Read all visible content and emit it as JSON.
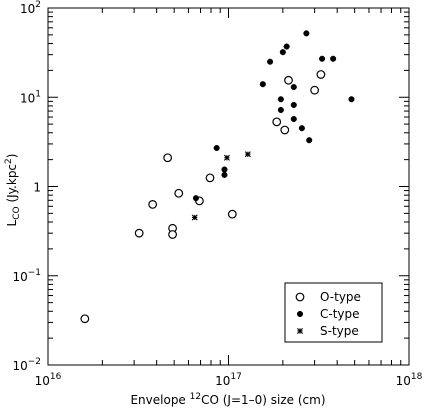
{
  "chart_data": {
    "type": "scatter",
    "title": "",
    "xlabel": {
      "prefix": "Envelope ",
      "sup": "12",
      "suffix": "CO (J=1–0) size (cm)"
    },
    "ylabel": {
      "base": "L",
      "sub": "CO",
      "mid": " (Jy.kpc",
      "sup": "2",
      "end": ")"
    },
    "x_scale": "log",
    "y_scale": "log",
    "xlim": [
      1e+16,
      1e+18
    ],
    "ylim": [
      0.01,
      100
    ],
    "x_ticks": [
      {
        "value": 1e+16,
        "base": "10",
        "exp": "16"
      },
      {
        "value": 1e+17,
        "base": "10",
        "exp": "17"
      },
      {
        "value": 1e+18,
        "base": "10",
        "exp": "18"
      }
    ],
    "y_ticks": [
      {
        "value": 0.01,
        "base": "10",
        "exp": "−2"
      },
      {
        "value": 0.1,
        "base": "10",
        "exp": "−1"
      },
      {
        "value": 1,
        "base": "1",
        "exp": ""
      },
      {
        "value": 10,
        "base": "10",
        "exp": "1"
      },
      {
        "value": 100,
        "base": "10",
        "exp": "2"
      }
    ],
    "grid": false,
    "legend_position": "bottom-right",
    "series": [
      {
        "name": "O-type",
        "marker": "open-circle",
        "points": [
          [
            1.6e+16,
            0.033
          ],
          [
            3.2e+16,
            0.3
          ],
          [
            3.8e+16,
            0.63
          ],
          [
            4.6e+16,
            2.1
          ],
          [
            4.9e+16,
            0.34
          ],
          [
            4.9e+16,
            0.29
          ],
          [
            5.3e+16,
            0.84
          ],
          [
            6.9e+16,
            0.69
          ],
          [
            7.9e+16,
            1.25
          ],
          [
            1.05e+17,
            0.49
          ],
          [
            1.85e+17,
            5.3
          ],
          [
            2.05e+17,
            4.3
          ],
          [
            2.15e+17,
            15.5
          ],
          [
            3e+17,
            12.0
          ],
          [
            3.25e+17,
            18.0
          ]
        ]
      },
      {
        "name": "C-type",
        "marker": "filled-circle",
        "points": [
          [
            6.6e+16,
            0.74
          ],
          [
            8.6e+16,
            2.7
          ],
          [
            9.5e+16,
            1.55
          ],
          [
            9.5e+16,
            1.35
          ],
          [
            1.55e+17,
            14.0
          ],
          [
            1.7e+17,
            25.0
          ],
          [
            1.95e+17,
            9.5
          ],
          [
            1.95e+17,
            7.2
          ],
          [
            2e+17,
            32.0
          ],
          [
            2.1e+17,
            37.0
          ],
          [
            2.3e+17,
            13.0
          ],
          [
            2.3e+17,
            8.2
          ],
          [
            2.3e+17,
            5.7
          ],
          [
            2.55e+17,
            4.5
          ],
          [
            2.7e+17,
            52.0
          ],
          [
            2.8e+17,
            3.3
          ],
          [
            3.3e+17,
            27.0
          ],
          [
            3.8e+17,
            27.0
          ],
          [
            4.8e+17,
            9.5
          ]
        ]
      },
      {
        "name": "S-type",
        "marker": "star",
        "points": [
          [
            6.5e+16,
            0.45
          ],
          [
            9.8e+16,
            2.1
          ],
          [
            1.28e+17,
            2.3
          ]
        ]
      }
    ],
    "legend": [
      {
        "label": "O-type",
        "marker": "open-circle"
      },
      {
        "label": "C-type",
        "marker": "filled-circle"
      },
      {
        "label": "S-type",
        "marker": "star"
      }
    ]
  }
}
